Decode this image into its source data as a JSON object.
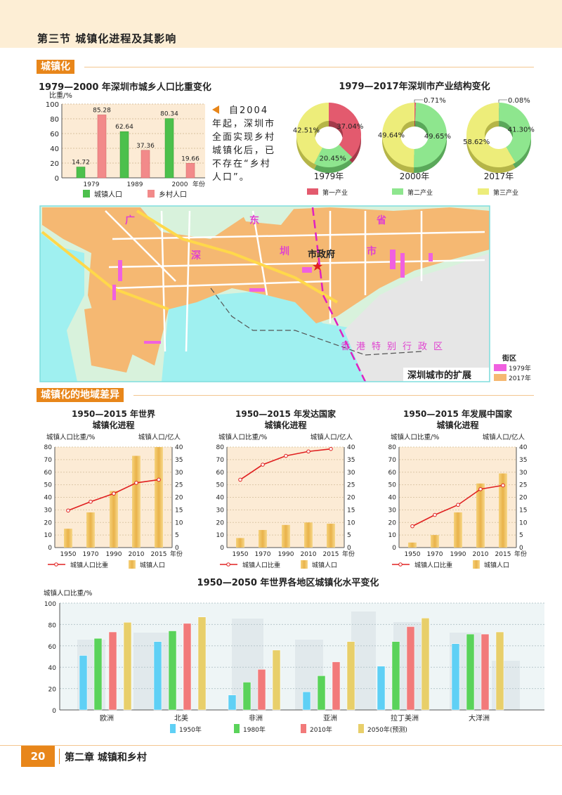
{
  "header": {
    "section_title": "第三节  城镇化进程及其影响"
  },
  "sections": [
    {
      "label": "城镇化"
    },
    {
      "label": "城镇化的地域差异"
    }
  ],
  "side_note": {
    "text": "自2004年起，深圳市全面实现乡村城镇化后，已不存在“乡村人口”。",
    "arrow_color": "#e8861a"
  },
  "map": {
    "title": "深圳城市的扩展",
    "place_chars": [
      "广",
      "东",
      "省",
      "深",
      "圳",
      "市"
    ],
    "government": "市政府",
    "hk": "香港特别行政区",
    "legend_title": "街区",
    "legend": [
      {
        "label": "1979年",
        "color": "#f060e0"
      },
      {
        "label": "2017年",
        "color": "#f5b872"
      }
    ]
  },
  "footer": {
    "page_number": "20",
    "chapter": "第二章  城镇和乡村"
  },
  "chart_data": [
    {
      "type": "bar",
      "title": "1979—2000 年深圳市城乡人口比重变化",
      "ylabel": "比重/%",
      "xlabel": "年份",
      "categories": [
        "1979",
        "1989",
        "2000"
      ],
      "ylim": [
        0,
        100
      ],
      "yticks": [
        0,
        20,
        40,
        60,
        80,
        100
      ],
      "grid": true,
      "legend": "bottom",
      "series": [
        {
          "name": "城镇人口",
          "values": [
            14.72,
            62.64,
            80.34
          ],
          "color": "#4cc04c"
        },
        {
          "name": "乡村人口",
          "values": [
            85.28,
            37.36,
            19.66
          ],
          "color": "#f28a8a"
        }
      ]
    },
    {
      "type": "pie",
      "title": "1979—2017年深圳市产业结构变化",
      "legend": "bottom",
      "series_names": [
        "第一产业",
        "第二产业",
        "第三产业"
      ],
      "colors": [
        "#e35a6e",
        "#8ee68e",
        "#eded7a"
      ],
      "pies": [
        {
          "label": "1979年",
          "values": [
            37.04,
            20.45,
            42.51
          ],
          "labels": [
            "37.04%",
            "20.45%",
            "42.51%"
          ]
        },
        {
          "label": "2000年",
          "values": [
            0.71,
            49.65,
            49.64
          ],
          "labels": [
            "0.71%",
            "49.65%",
            "49.64%"
          ]
        },
        {
          "label": "2017年",
          "values": [
            0.08,
            41.3,
            58.62
          ],
          "labels": [
            "0.08%",
            "41.30%",
            "58.62%"
          ]
        }
      ]
    },
    {
      "type": "bar+line",
      "title_lines": [
        "1950—2015 年世界",
        "城镇化进程"
      ],
      "ylabel": "城镇人口比重/%",
      "y2label": "城镇人口/亿人",
      "xlabel": "年份",
      "categories": [
        "1950",
        "1970",
        "1990",
        "2010",
        "2015"
      ],
      "ylim": [
        0,
        80
      ],
      "y2lim": [
        0,
        40
      ],
      "yticks": [
        0,
        10,
        20,
        30,
        40,
        50,
        60,
        70,
        80
      ],
      "y2ticks": [
        0,
        5,
        10,
        15,
        20,
        25,
        30,
        35,
        40
      ],
      "line": {
        "name": "城镇人口比重",
        "values": [
          29.5,
          36.5,
          43,
          51.5,
          54
        ],
        "color": "#e02020"
      },
      "bars": {
        "name": "城镇人口",
        "values": [
          7.5,
          14,
          22.5,
          36.5,
          40
        ],
        "color": "#e8b850"
      }
    },
    {
      "type": "bar+line",
      "title_lines": [
        "1950—2015 年发达国家",
        "城镇化进程"
      ],
      "ylabel": "城镇人口比重/%",
      "y2label": "城镇人口/亿人",
      "xlabel": "年份",
      "categories": [
        "1950",
        "1970",
        "1990",
        "2010",
        "2015"
      ],
      "ylim": [
        0,
        80
      ],
      "y2lim": [
        0,
        40
      ],
      "yticks": [
        0,
        10,
        20,
        30,
        40,
        50,
        60,
        70,
        80
      ],
      "y2ticks": [
        0,
        5,
        10,
        15,
        20,
        25,
        30,
        35,
        40
      ],
      "line": {
        "name": "城镇人口比重",
        "values": [
          54,
          66,
          73,
          76.5,
          78.5
        ],
        "color": "#e02020"
      },
      "bars": {
        "name": "城镇人口",
        "values": [
          3.8,
          7,
          9,
          10,
          9.5
        ],
        "color": "#e8b850"
      }
    },
    {
      "type": "bar+line",
      "title_lines": [
        "1950—2015 年发展中国家",
        "城镇化进程"
      ],
      "ylabel": "城镇人口比重/%",
      "y2label": "城镇人口/亿人",
      "xlabel": "年份",
      "categories": [
        "1950",
        "1970",
        "1990",
        "2010",
        "2015"
      ],
      "ylim": [
        0,
        80
      ],
      "y2lim": [
        0,
        40
      ],
      "yticks": [
        0,
        10,
        20,
        30,
        40,
        50,
        60,
        70,
        80
      ],
      "y2ticks": [
        0,
        5,
        10,
        15,
        20,
        25,
        30,
        35,
        40
      ],
      "line": {
        "name": "城镇人口比重",
        "values": [
          17,
          26,
          34,
          46.5,
          49.5
        ],
        "color": "#e02020"
      },
      "bars": {
        "name": "城镇人口",
        "values": [
          2,
          5,
          14,
          25.5,
          29.5
        ],
        "color": "#e8b850"
      }
    },
    {
      "type": "bar",
      "title": "1950—2050 年世界各地区城镇化水平变化",
      "ylabel": "城镇人口比重/%",
      "categories": [
        "欧洲",
        "北美",
        "非洲",
        "亚洲",
        "拉丁美洲",
        "大洋洲"
      ],
      "ylim": [
        0,
        100
      ],
      "yticks": [
        0,
        20,
        40,
        60,
        80,
        100
      ],
      "grid": true,
      "legend": "bottom",
      "series": [
        {
          "name": "1950年",
          "values": [
            51,
            64,
            14,
            17,
            41,
            62
          ],
          "color": "#5fd0f5"
        },
        {
          "name": "1980年",
          "values": [
            67,
            74,
            26,
            32,
            64,
            71
          ],
          "color": "#5ad35a"
        },
        {
          "name": "2010年",
          "values": [
            73,
            81,
            38,
            45,
            78,
            71
          ],
          "color": "#f27a7a"
        },
        {
          "name": "2050年(预测)",
          "values": [
            82,
            87,
            56,
            64,
            86,
            73
          ],
          "color": "#e8cf6a"
        }
      ]
    }
  ]
}
